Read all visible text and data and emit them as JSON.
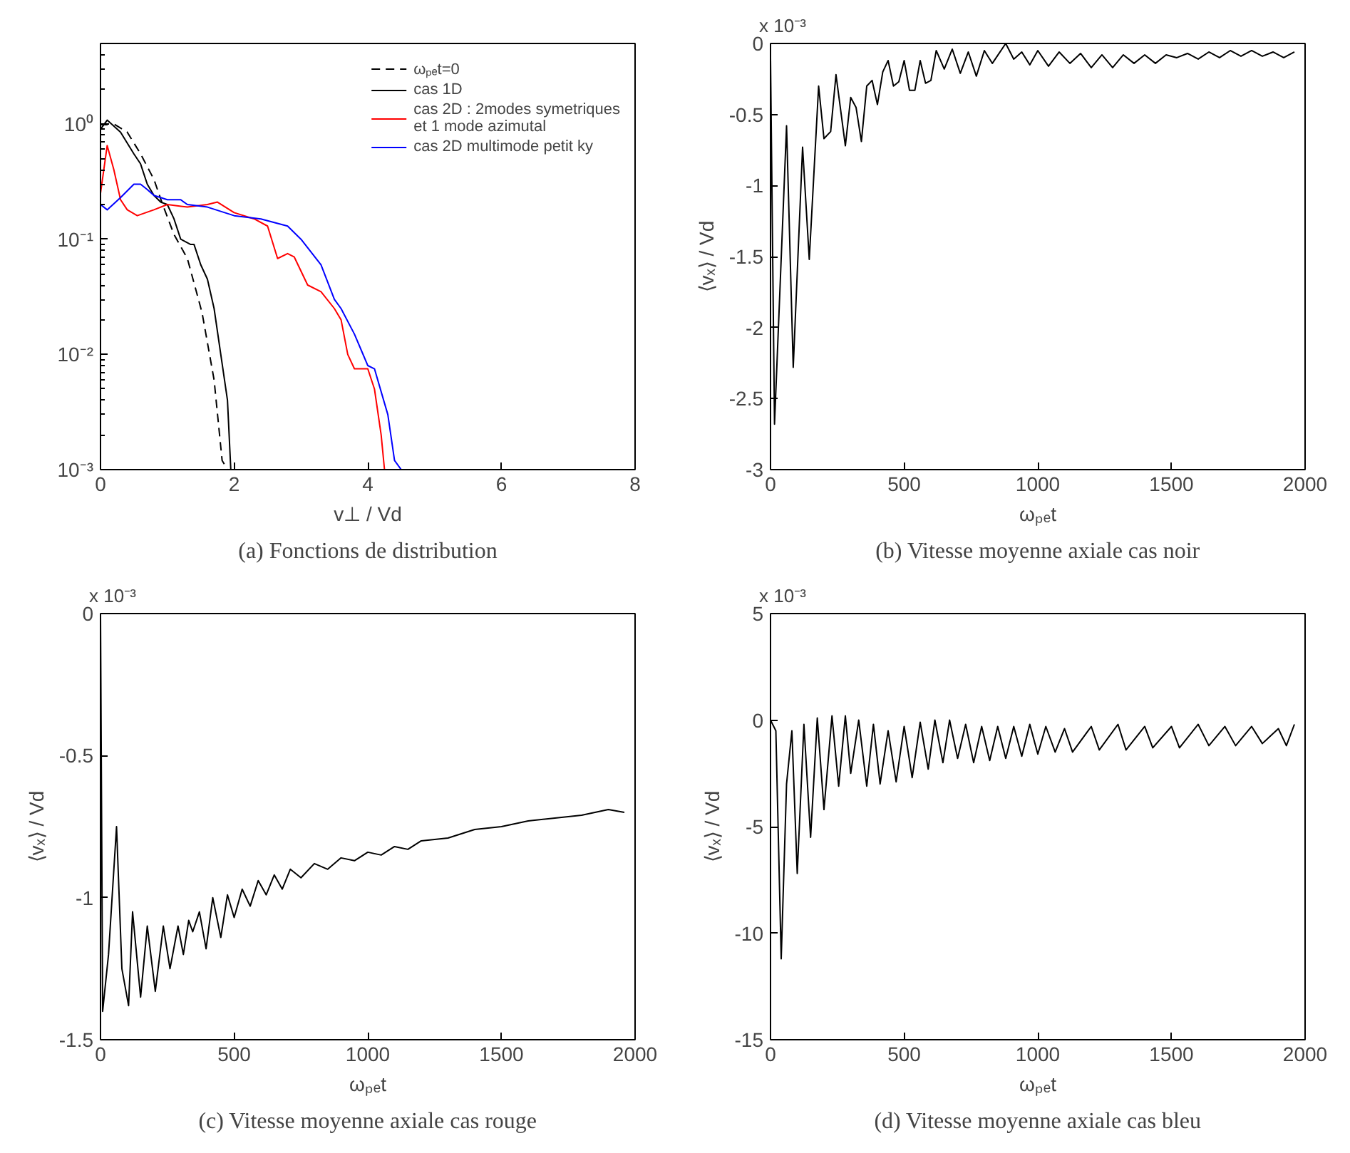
{
  "chart_data": [
    {
      "type": "line",
      "xlabel": "v⊥ / Vd",
      "log": "y",
      "legend": "top right",
      "xlim": [
        0,
        8
      ],
      "xticks": [
        0,
        2,
        4,
        6,
        8
      ],
      "ylim": [
        0.001,
        5
      ],
      "yticks": [
        {
          "value": 0.001,
          "label": "10⁻³"
        },
        {
          "value": 0.01,
          "label": "10⁻²"
        },
        {
          "value": 0.1,
          "label": "10⁻¹"
        },
        {
          "value": 1,
          "label": "10⁰"
        }
      ],
      "annotations": [
        "(a) Fonctions de distribution"
      ],
      "series": [
        {
          "name": "ωₚₑt=0",
          "color": "#000000",
          "line_style": "dashed",
          "x": [
            0,
            0.2,
            0.4,
            0.6,
            0.8,
            0.93,
            1.1,
            1.3,
            1.52,
            1.7,
            1.82,
            1.9
          ],
          "values": [
            1.0,
            1.0,
            0.85,
            0.55,
            0.33,
            0.2,
            0.11,
            0.068,
            0.023,
            0.006,
            0.0012,
            0.001
          ]
        },
        {
          "name": "cas 1D",
          "color": "#000000",
          "x": [
            0,
            0.1,
            0.3,
            0.5,
            0.6,
            0.7,
            0.8,
            0.9,
            1.0,
            1.1,
            1.2,
            1.35,
            1.4,
            1.5,
            1.6,
            1.7,
            1.8,
            1.9,
            1.95
          ],
          "values": [
            0.9,
            1.08,
            0.85,
            0.55,
            0.45,
            0.3,
            0.24,
            0.21,
            0.2,
            0.15,
            0.1,
            0.09,
            0.09,
            0.06,
            0.045,
            0.025,
            0.01,
            0.004,
            0.001
          ]
        },
        {
          "name": "cas 2D : 2modes symetriques\net 1 mode azimutal",
          "color": "#ff0000",
          "x": [
            0,
            0.1,
            0.2,
            0.3,
            0.4,
            0.55,
            0.8,
            1.0,
            1.3,
            1.6,
            1.75,
            2.0,
            2.3,
            2.5,
            2.65,
            2.8,
            2.9,
            3.1,
            3.3,
            3.5,
            3.6,
            3.7,
            3.8,
            4.0,
            4.1,
            4.2,
            4.25
          ],
          "values": [
            0.25,
            0.65,
            0.4,
            0.22,
            0.18,
            0.16,
            0.18,
            0.2,
            0.19,
            0.2,
            0.21,
            0.17,
            0.15,
            0.13,
            0.068,
            0.075,
            0.07,
            0.04,
            0.035,
            0.025,
            0.02,
            0.01,
            0.0075,
            0.0075,
            0.005,
            0.002,
            0.001
          ]
        },
        {
          "name": "cas 2D multimode petit ky",
          "color": "#0000ff",
          "x": [
            0,
            0.1,
            0.3,
            0.5,
            0.6,
            0.7,
            0.8,
            1.0,
            1.2,
            1.3,
            1.6,
            2.0,
            2.4,
            2.8,
            3.0,
            3.3,
            3.5,
            3.6,
            3.8,
            4.0,
            4.1,
            4.3,
            4.4,
            4.5
          ],
          "values": [
            0.2,
            0.18,
            0.23,
            0.3,
            0.3,
            0.27,
            0.24,
            0.22,
            0.22,
            0.2,
            0.19,
            0.16,
            0.15,
            0.13,
            0.1,
            0.06,
            0.03,
            0.025,
            0.015,
            0.008,
            0.0075,
            0.003,
            0.0012,
            0.001
          ]
        }
      ]
    },
    {
      "type": "line",
      "xlabel": "ωₚₑt",
      "ylabel": "⟨vₓ⟩ / Vd",
      "xlim": [
        0,
        2000
      ],
      "xticks": [
        0,
        500,
        1000,
        1500,
        2000
      ],
      "ylim": [
        -3,
        0
      ],
      "yticks": [
        -3,
        -2.5,
        -2,
        -1.5,
        -1,
        -0.5,
        0
      ],
      "annotations": [
        "x 10⁻³",
        "(b) Vitesse moyenne axiale cas noir"
      ],
      "series": [
        {
          "color": "#000000",
          "x": [
            0,
            15,
            60,
            85,
            120,
            145,
            180,
            200,
            225,
            245,
            280,
            300,
            320,
            340,
            360,
            380,
            400,
            420,
            440,
            460,
            480,
            500,
            520,
            540,
            560,
            580,
            600,
            620,
            650,
            680,
            710,
            740,
            770,
            800,
            830,
            880,
            910,
            940,
            970,
            1000,
            1040,
            1080,
            1120,
            1160,
            1200,
            1240,
            1280,
            1320,
            1360,
            1400,
            1440,
            1480,
            1520,
            1560,
            1600,
            1640,
            1680,
            1720,
            1760,
            1800,
            1840,
            1880,
            1920,
            1960
          ],
          "values": [
            -0.1,
            -2.68,
            -0.58,
            -2.28,
            -0.73,
            -1.52,
            -0.3,
            -0.67,
            -0.62,
            -0.22,
            -0.72,
            -0.38,
            -0.45,
            -0.69,
            -0.3,
            -0.26,
            -0.43,
            -0.2,
            -0.12,
            -0.3,
            -0.27,
            -0.12,
            -0.33,
            -0.33,
            -0.12,
            -0.28,
            -0.26,
            -0.05,
            -0.18,
            -0.04,
            -0.21,
            -0.06,
            -0.23,
            -0.05,
            -0.14,
            0.0,
            -0.11,
            -0.06,
            -0.15,
            -0.05,
            -0.16,
            -0.06,
            -0.14,
            -0.07,
            -0.17,
            -0.08,
            -0.17,
            -0.08,
            -0.14,
            -0.08,
            -0.14,
            -0.08,
            -0.1,
            -0.07,
            -0.11,
            -0.06,
            -0.1,
            -0.05,
            -0.09,
            -0.05,
            -0.09,
            -0.06,
            -0.1,
            -0.06
          ]
        }
      ]
    },
    {
      "type": "line",
      "xlabel": "ωₚₑt",
      "ylabel": "⟨vₓ⟩ / Vd",
      "xlim": [
        0,
        2000
      ],
      "xticks": [
        0,
        500,
        1000,
        1500,
        2000
      ],
      "ylim": [
        -1.5,
        0
      ],
      "yticks": [
        -1.5,
        -1,
        -0.5,
        0
      ],
      "annotations": [
        "x 10⁻³",
        "(c) Vitesse moyenne axiale cas rouge"
      ],
      "series": [
        {
          "color": "#000000",
          "x": [
            0,
            8,
            30,
            60,
            80,
            105,
            120,
            150,
            175,
            205,
            235,
            260,
            290,
            310,
            330,
            345,
            370,
            395,
            420,
            450,
            475,
            500,
            530,
            560,
            590,
            620,
            650,
            680,
            710,
            750,
            800,
            850,
            900,
            950,
            1000,
            1050,
            1100,
            1150,
            1200,
            1300,
            1400,
            1500,
            1600,
            1700,
            1800,
            1900,
            1960
          ],
          "values": [
            0,
            -1.4,
            -1.2,
            -0.75,
            -1.25,
            -1.38,
            -1.05,
            -1.35,
            -1.1,
            -1.33,
            -1.1,
            -1.25,
            -1.1,
            -1.2,
            -1.08,
            -1.12,
            -1.05,
            -1.18,
            -1.0,
            -1.14,
            -0.99,
            -1.07,
            -0.97,
            -1.03,
            -0.94,
            -0.99,
            -0.92,
            -0.97,
            -0.9,
            -0.93,
            -0.88,
            -0.9,
            -0.86,
            -0.87,
            -0.84,
            -0.85,
            -0.82,
            -0.83,
            -0.8,
            -0.79,
            -0.76,
            -0.75,
            -0.73,
            -0.72,
            -0.71,
            -0.69,
            -0.7
          ]
        }
      ]
    },
    {
      "type": "line",
      "xlabel": "ωₚₑt",
      "ylabel": "⟨vₓ⟩ / Vd",
      "xlim": [
        0,
        2000
      ],
      "xticks": [
        0,
        500,
        1000,
        1500,
        2000
      ],
      "ylim": [
        -15,
        5
      ],
      "yticks": [
        -15,
        -10,
        -5,
        0,
        5
      ],
      "annotations": [
        "x 10⁻³",
        "(d) Vitesse moyenne axiale cas bleu"
      ],
      "series": [
        {
          "color": "#000000",
          "x": [
            0,
            20,
            40,
            60,
            80,
            100,
            125,
            150,
            175,
            200,
            230,
            255,
            280,
            300,
            330,
            360,
            385,
            410,
            440,
            470,
            500,
            530,
            560,
            590,
            615,
            645,
            670,
            700,
            730,
            760,
            790,
            820,
            850,
            880,
            910,
            940,
            970,
            1000,
            1030,
            1065,
            1100,
            1130,
            1200,
            1230,
            1300,
            1330,
            1400,
            1430,
            1500,
            1530,
            1600,
            1640,
            1700,
            1740,
            1800,
            1840,
            1900,
            1930,
            1960
          ],
          "values": [
            0,
            -0.5,
            -11.2,
            -3,
            -0.5,
            -7.2,
            -0.2,
            -5.5,
            0.1,
            -4.2,
            0.2,
            -3.1,
            0.2,
            -2.5,
            0,
            -3.1,
            -0.2,
            -3.0,
            -0.5,
            -2.9,
            -0.3,
            -2.7,
            -0.1,
            -2.3,
            0,
            -2.0,
            0,
            -1.8,
            -0.2,
            -2.0,
            -0.3,
            -1.9,
            -0.3,
            -1.8,
            -0.3,
            -1.7,
            -0.2,
            -1.6,
            -0.3,
            -1.5,
            -0.4,
            -1.5,
            -0.3,
            -1.4,
            -0.2,
            -1.4,
            -0.3,
            -1.3,
            -0.3,
            -1.3,
            -0.2,
            -1.2,
            -0.3,
            -1.2,
            -0.3,
            -1.1,
            -0.4,
            -1.2,
            -0.2
          ]
        }
      ]
    }
  ]
}
